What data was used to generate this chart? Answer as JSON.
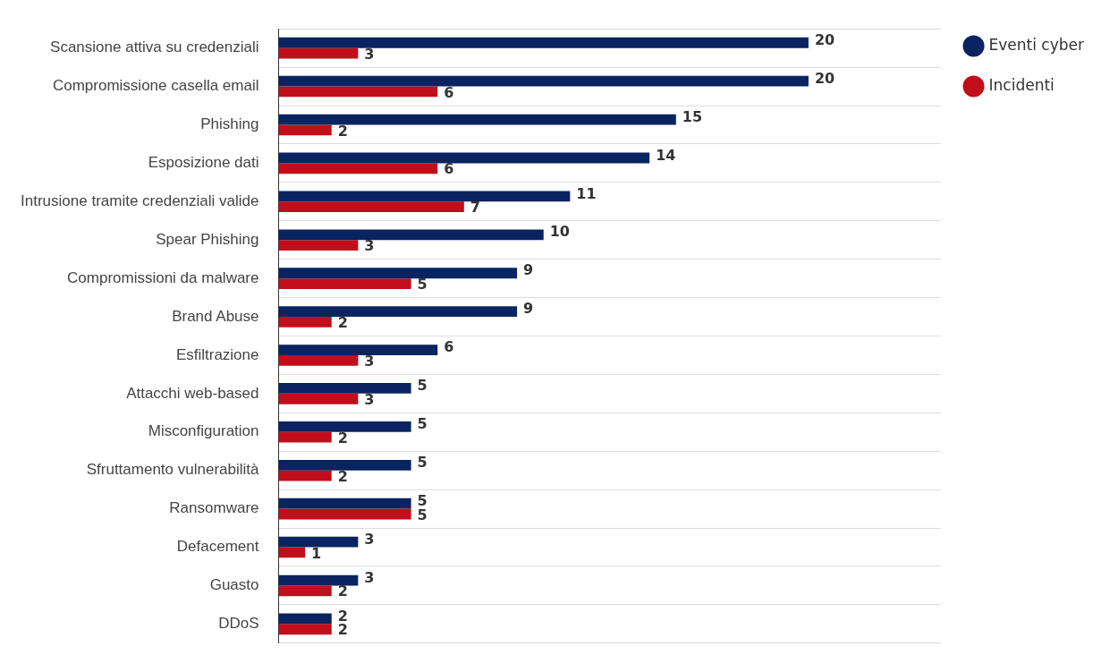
{
  "chart_data": {
    "type": "bar",
    "orientation": "horizontal",
    "categories": [
      "Scansione attiva su credenziali",
      "Compromissione casella email",
      "Phishing",
      "Esposizione dati",
      "Intrusione tramite credenziali valide",
      "Spear Phishing",
      "Compromissioni da malware",
      "Brand Abuse",
      "Esfiltrazione",
      "Attacchi web-based",
      "Misconfiguration",
      "Sfruttamento vulnerabilità",
      "Ransomware",
      "Defacement",
      "Guasto",
      "DDoS"
    ],
    "series": [
      {
        "name": "Eventi cyber",
        "color": "#0a2361",
        "values": [
          20,
          20,
          15,
          14,
          11,
          10,
          9,
          9,
          6,
          5,
          5,
          5,
          5,
          3,
          3,
          2
        ]
      },
      {
        "name": "Incidenti",
        "color": "#c20e1a",
        "values": [
          3,
          6,
          2,
          6,
          7,
          3,
          5,
          2,
          3,
          3,
          2,
          2,
          5,
          1,
          2,
          2
        ]
      }
    ],
    "data_labels": true,
    "grid": "y",
    "legend": "top right"
  }
}
